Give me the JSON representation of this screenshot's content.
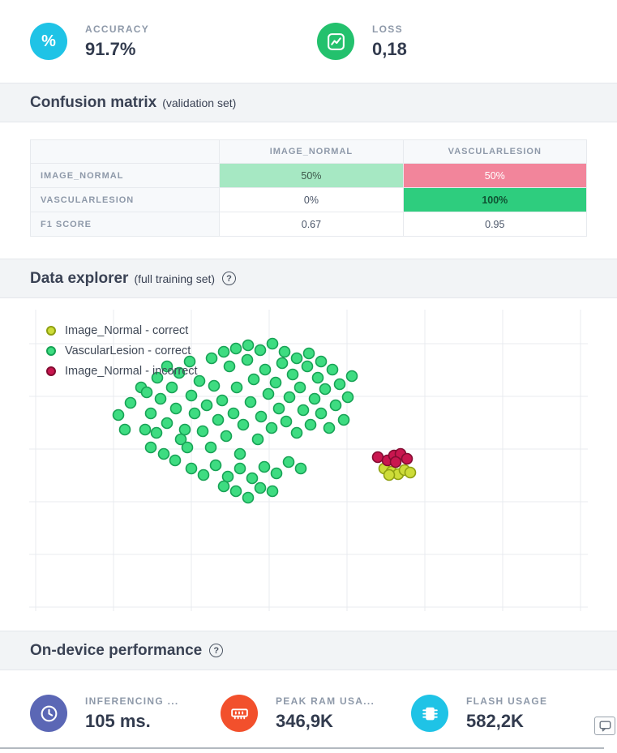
{
  "header_metrics": {
    "accuracy": {
      "label": "ACCURACY",
      "value": "91.7%",
      "icon": "percent-icon",
      "color": "#1fc3e6"
    },
    "loss": {
      "label": "LOSS",
      "value": "0,18",
      "icon": "line-chart-icon",
      "color": "#23c16d"
    }
  },
  "confusion_matrix": {
    "title": "Confusion matrix",
    "subtitle": "(validation set)",
    "columns": [
      "IMAGE_NORMAL",
      "VASCULARLESION"
    ],
    "rows": [
      {
        "label": "IMAGE_NORMAL",
        "cells": [
          {
            "text": "50%",
            "bg": "#a6e8c3",
            "fg": "#3c584a",
            "bold": false
          },
          {
            "text": "50%",
            "bg": "#f2859b",
            "fg": "#ffffff",
            "bold": false
          }
        ]
      },
      {
        "label": "VASCULARLESION",
        "cells": [
          {
            "text": "0%",
            "bg": "#ffffff",
            "fg": "#4a5568",
            "bold": false
          },
          {
            "text": "100%",
            "bg": "#2ecd7e",
            "fg": "#0f5132",
            "bold": true
          }
        ]
      },
      {
        "label": "F1 SCORE",
        "cells": [
          {
            "text": "0.67",
            "bg": "#ffffff",
            "fg": "#4a5568",
            "bold": false
          },
          {
            "text": "0.95",
            "bg": "#ffffff",
            "fg": "#4a5568",
            "bold": false
          }
        ]
      }
    ]
  },
  "data_explorer": {
    "title": "Data explorer",
    "subtitle": "(full training set)",
    "help_icon": "?"
  },
  "chart_data": {
    "type": "scatter",
    "title": "Data explorer (full training set)",
    "grid": true,
    "axis_labels_visible": false,
    "units": "plot-pixels",
    "legend_position": "top-left",
    "series": [
      {
        "name": "Image_Normal - correct",
        "color": "#cddc39",
        "stroke": "#8fa012",
        "points": [
          [
            438,
            196
          ],
          [
            447,
            200
          ],
          [
            455,
            203
          ],
          [
            463,
            198
          ],
          [
            470,
            201
          ],
          [
            444,
            204
          ]
        ]
      },
      {
        "name": "VascularLesion - correct",
        "color": "#3edc81",
        "stroke": "#17a255",
        "points": [
          [
            125,
            115
          ],
          [
            138,
            96
          ],
          [
            150,
            128
          ],
          [
            143,
            148
          ],
          [
            158,
            84
          ],
          [
            162,
            110
          ],
          [
            170,
            140
          ],
          [
            176,
            96
          ],
          [
            181,
            122
          ],
          [
            187,
            160
          ],
          [
            150,
            170
          ],
          [
            166,
            178
          ],
          [
            180,
            186
          ],
          [
            195,
            170
          ],
          [
            192,
            148
          ],
          [
            200,
            106
          ],
          [
            204,
            128
          ],
          [
            210,
            88
          ],
          [
            214,
            150
          ],
          [
            219,
            118
          ],
          [
            224,
            170
          ],
          [
            228,
            94
          ],
          [
            233,
            136
          ],
          [
            238,
            112
          ],
          [
            243,
            156
          ],
          [
            247,
            70
          ],
          [
            252,
            128
          ],
          [
            256,
            96
          ],
          [
            260,
            178
          ],
          [
            264,
            142
          ],
          [
            269,
            62
          ],
          [
            273,
            114
          ],
          [
            277,
            86
          ],
          [
            282,
            160
          ],
          [
            286,
            132
          ],
          [
            291,
            74
          ],
          [
            295,
            104
          ],
          [
            299,
            146
          ],
          [
            304,
            90
          ],
          [
            308,
            122
          ],
          [
            312,
            66
          ],
          [
            317,
            138
          ],
          [
            321,
            108
          ],
          [
            325,
            80
          ],
          [
            330,
            152
          ],
          [
            334,
            96
          ],
          [
            338,
            124
          ],
          [
            343,
            70
          ],
          [
            347,
            142
          ],
          [
            352,
            110
          ],
          [
            356,
            84
          ],
          [
            360,
            128
          ],
          [
            365,
            98
          ],
          [
            370,
            146
          ],
          [
            374,
            74
          ],
          [
            378,
            118
          ],
          [
            383,
            92
          ],
          [
            388,
            136
          ],
          [
            393,
            108
          ],
          [
            398,
            82
          ],
          [
            200,
            196
          ],
          [
            215,
            204
          ],
          [
            230,
            192
          ],
          [
            245,
            206
          ],
          [
            260,
            196
          ],
          [
            275,
            208
          ],
          [
            290,
            194
          ],
          [
            305,
            202
          ],
          [
            320,
            188
          ],
          [
            335,
            196
          ],
          [
            255,
            224
          ],
          [
            270,
            232
          ],
          [
            285,
            220
          ],
          [
            240,
            218
          ],
          [
            300,
            224
          ],
          [
            225,
            60
          ],
          [
            240,
            52
          ],
          [
            255,
            48
          ],
          [
            270,
            44
          ],
          [
            285,
            50
          ],
          [
            300,
            42
          ],
          [
            315,
            52
          ],
          [
            170,
            70
          ],
          [
            185,
            78
          ],
          [
            198,
            64
          ],
          [
            330,
            60
          ],
          [
            345,
            54
          ],
          [
            360,
            64
          ],
          [
            145,
            102
          ],
          [
            157,
            152
          ],
          [
            110,
            130
          ],
          [
            118,
            148
          ]
        ]
      },
      {
        "name": "Image_Normal - incorrect",
        "color": "#c9164f",
        "stroke": "#830c31",
        "points": [
          [
            430,
            182
          ],
          [
            442,
            186
          ],
          [
            450,
            180
          ],
          [
            458,
            178
          ],
          [
            466,
            184
          ],
          [
            452,
            188
          ]
        ]
      }
    ]
  },
  "performance": {
    "title": "On-device performance",
    "help_icon": "?",
    "metrics": [
      {
        "label": "INFERENCING ...",
        "value": "105 ms.",
        "icon": "clock-icon",
        "color": "#5b67b5"
      },
      {
        "label": "PEAK RAM USA...",
        "value": "346,9K",
        "icon": "ram-icon",
        "color": "#f2502c"
      },
      {
        "label": "FLASH USAGE",
        "value": "582,2K",
        "icon": "chip-icon",
        "color": "#1fc3e6"
      }
    ]
  },
  "feedback": {
    "icon": "chat-icon"
  }
}
